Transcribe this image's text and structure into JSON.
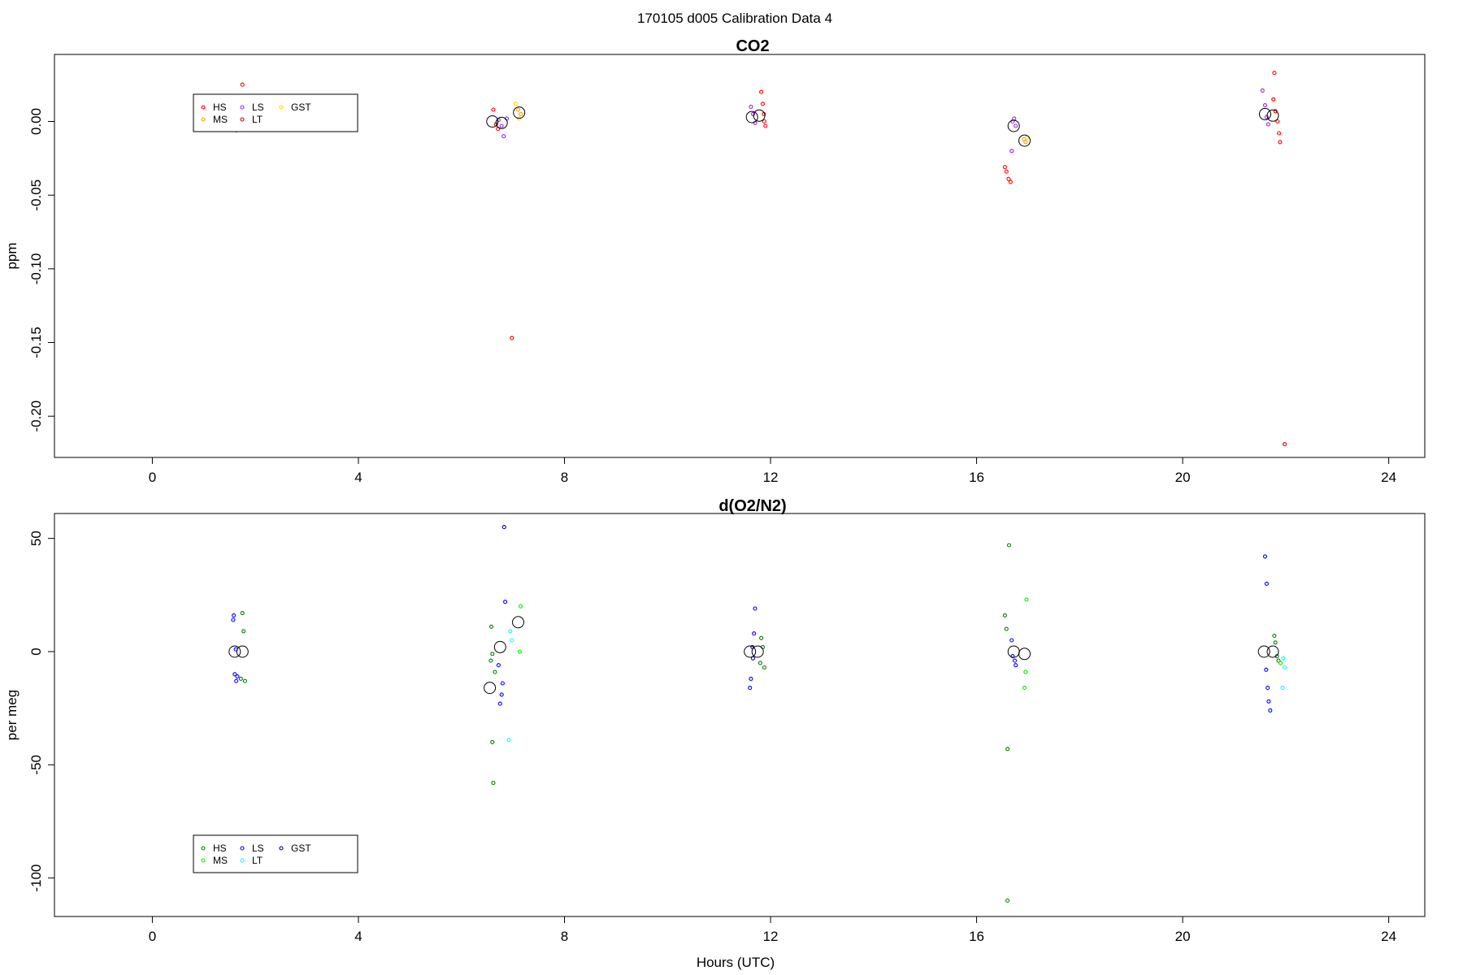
{
  "figure": {
    "suptitle": "170105   d005   Calibration Data 4"
  },
  "chart_data": [
    {
      "type": "scatter",
      "title": "CO2",
      "xlabel": "",
      "ylabel": "ppm",
      "xlim": [
        -1.9,
        24.7
      ],
      "ylim": [
        -0.228,
        0.0455
      ],
      "xticks": [
        "0",
        "4",
        "8",
        "12",
        "16",
        "20",
        "24"
      ],
      "yticks": [
        "0.00",
        "-0.05",
        "-0.10",
        "-0.15",
        "-0.20"
      ],
      "grid": false,
      "legend": {
        "placement": "top-left",
        "entries": [
          {
            "name": "HS",
            "color": "#ff0000"
          },
          {
            "name": "MS",
            "color": "#ff9900"
          },
          {
            "name": "LS",
            "color": "#a020f0"
          },
          {
            "name": "LT",
            "color": "#cc0000"
          },
          {
            "name": "GST",
            "color": "#ffd700"
          }
        ]
      },
      "series": [
        {
          "name": "HS",
          "color": "#ff0000",
          "points": [
            [
              1.75,
              0.025
            ],
            [
              1.72,
              0.005
            ],
            [
              6.62,
              0.008
            ],
            [
              6.67,
              -0.002
            ],
            [
              6.71,
              -0.005
            ],
            [
              11.82,
              0.02
            ],
            [
              11.85,
              0.012
            ],
            [
              11.88,
              0.0
            ],
            [
              11.9,
              -0.003
            ],
            [
              11.87,
              0.005
            ],
            [
              16.55,
              -0.031
            ],
            [
              16.58,
              -0.034
            ],
            [
              16.62,
              -0.039
            ],
            [
              16.66,
              -0.041
            ],
            [
              21.78,
              0.033
            ],
            [
              21.76,
              0.015
            ],
            [
              21.8,
              0.007
            ],
            [
              21.84,
              0.0
            ],
            [
              21.87,
              -0.008
            ],
            [
              21.89,
              -0.014
            ]
          ]
        },
        {
          "name": "MS",
          "color": "#ff9900",
          "points": [
            [
              7.1,
              0.008
            ],
            [
              7.15,
              0.005
            ],
            [
              16.92,
              -0.012
            ],
            [
              16.95,
              -0.014
            ]
          ]
        },
        {
          "name": "LS",
          "color": "#a020f0",
          "points": [
            [
              1.58,
              0.016
            ],
            [
              1.62,
              0.013
            ],
            [
              1.65,
              0.009
            ],
            [
              1.6,
              0.0
            ],
            [
              1.63,
              -0.006
            ],
            [
              6.72,
              0.001
            ],
            [
              6.78,
              -0.003
            ],
            [
              6.82,
              -0.01
            ],
            [
              6.88,
              0.002
            ],
            [
              11.62,
              0.01
            ],
            [
              11.66,
              0.005
            ],
            [
              11.7,
              -0.001
            ],
            [
              16.7,
              0.0
            ],
            [
              16.73,
              0.002
            ],
            [
              16.76,
              -0.003
            ],
            [
              16.68,
              -0.02
            ],
            [
              21.55,
              0.021
            ],
            [
              21.6,
              0.011
            ],
            [
              21.63,
              0.003
            ],
            [
              21.66,
              -0.002
            ]
          ]
        },
        {
          "name": "LT",
          "color": "#cc0000",
          "points": [
            [
              6.98,
              -0.147
            ],
            [
              21.98,
              -0.219
            ]
          ]
        },
        {
          "name": "GST",
          "color": "#ffd700",
          "points": [
            [
              7.05,
              0.012
            ],
            [
              7.12,
              0.002
            ],
            [
              16.98,
              -0.011
            ]
          ]
        },
        {
          "name": "mean",
          "color": "#000000",
          "large": true,
          "points": [
            [
              1.6,
              0.006
            ],
            [
              6.6,
              0.0
            ],
            [
              6.78,
              -0.001
            ],
            [
              7.12,
              0.006
            ],
            [
              11.64,
              0.003
            ],
            [
              11.78,
              0.004
            ],
            [
              16.72,
              -0.003
            ],
            [
              16.93,
              -0.013
            ],
            [
              21.6,
              0.005
            ],
            [
              21.75,
              0.004
            ]
          ]
        }
      ]
    },
    {
      "type": "scatter",
      "title": "d(O2/N2)",
      "xlabel": "Hours (UTC)",
      "ylabel": "per meg",
      "xlim": [
        -1.9,
        24.7
      ],
      "ylim": [
        -117,
        61
      ],
      "xticks": [
        "0",
        "4",
        "8",
        "12",
        "16",
        "20",
        "24"
      ],
      "yticks": [
        "50",
        "0",
        "-50",
        "-100"
      ],
      "grid": false,
      "legend": {
        "placement": "bottom-left",
        "entries": [
          {
            "name": "HS",
            "color": "#008000"
          },
          {
            "name": "MS",
            "color": "#00ee00"
          },
          {
            "name": "LS",
            "color": "#0000ff"
          },
          {
            "name": "LT",
            "color": "#00ffff"
          },
          {
            "name": "GST",
            "color": "#00008b"
          }
        ]
      },
      "series": [
        {
          "name": "HS",
          "color": "#008000",
          "points": [
            [
              1.75,
              17
            ],
            [
              1.77,
              9
            ],
            [
              1.72,
              -12
            ],
            [
              1.8,
              -13
            ],
            [
              6.58,
              11
            ],
            [
              6.6,
              -1
            ],
            [
              6.57,
              -4
            ],
            [
              6.65,
              -9
            ],
            [
              6.6,
              -40
            ],
            [
              6.62,
              -58
            ],
            [
              11.82,
              6
            ],
            [
              11.85,
              2
            ],
            [
              11.8,
              -5
            ],
            [
              11.88,
              -7
            ],
            [
              16.55,
              16
            ],
            [
              16.58,
              10
            ],
            [
              16.63,
              47
            ],
            [
              16.6,
              -43
            ],
            [
              16.6,
              -110
            ],
            [
              21.78,
              7
            ],
            [
              21.8,
              4
            ],
            [
              21.83,
              -2
            ],
            [
              21.86,
              -4
            ]
          ]
        },
        {
          "name": "MS",
          "color": "#00ee00",
          "points": [
            [
              7.15,
              20
            ],
            [
              7.13,
              0
            ],
            [
              16.97,
              23
            ],
            [
              16.95,
              -9
            ],
            [
              16.93,
              -16
            ],
            [
              21.9,
              -5
            ]
          ]
        },
        {
          "name": "LS",
          "color": "#0000ff",
          "points": [
            [
              1.58,
              16
            ],
            [
              1.57,
              14
            ],
            [
              1.62,
              1
            ],
            [
              1.6,
              -10
            ],
            [
              1.65,
              -11
            ],
            [
              1.63,
              -13
            ],
            [
              6.85,
              22
            ],
            [
              6.72,
              -6
            ],
            [
              6.8,
              -14
            ],
            [
              6.78,
              -19
            ],
            [
              6.75,
              -23
            ],
            [
              11.7,
              19
            ],
            [
              11.68,
              8
            ],
            [
              11.65,
              2
            ],
            [
              11.66,
              -3
            ],
            [
              11.62,
              -12
            ],
            [
              11.6,
              -16
            ],
            [
              16.68,
              5
            ],
            [
              16.7,
              -2
            ],
            [
              16.74,
              -4
            ],
            [
              16.76,
              -6
            ],
            [
              21.6,
              42
            ],
            [
              21.63,
              30
            ],
            [
              21.62,
              -8
            ],
            [
              21.65,
              -16
            ],
            [
              21.67,
              -22
            ],
            [
              21.7,
              -26
            ]
          ]
        },
        {
          "name": "LT",
          "color": "#00ffff",
          "points": [
            [
              6.95,
              9
            ],
            [
              6.98,
              5
            ],
            [
              6.92,
              -39
            ],
            [
              21.95,
              -3
            ],
            [
              21.98,
              -7
            ],
            [
              21.94,
              -16
            ]
          ]
        },
        {
          "name": "GST",
          "color": "#00008b",
          "points": [
            [
              6.83,
              55
            ]
          ]
        },
        {
          "name": "mean",
          "color": "#000000",
          "large": true,
          "points": [
            [
              1.6,
              0
            ],
            [
              1.75,
              0
            ],
            [
              6.55,
              -16
            ],
            [
              6.75,
              2
            ],
            [
              7.1,
              13
            ],
            [
              11.6,
              0
            ],
            [
              11.75,
              0
            ],
            [
              16.72,
              0
            ],
            [
              16.93,
              -1
            ],
            [
              21.58,
              0
            ],
            [
              21.75,
              0
            ]
          ]
        }
      ]
    }
  ]
}
